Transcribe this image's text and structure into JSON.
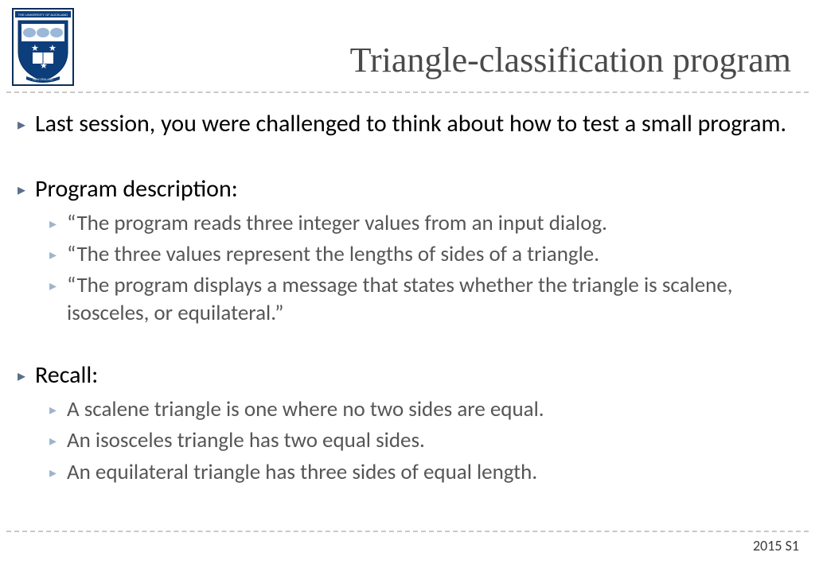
{
  "title": "Triangle-classification program",
  "footer": "2015 S1",
  "colors": {
    "title_color": "#4a4a4a",
    "l1_text": "#000000",
    "l2_text": "#565656",
    "l1_arrow": "#5a6f8a",
    "l2_arrow": "#9eb4cc",
    "divider": "#c8c8c8",
    "shield_blue": "#0d3e7c",
    "shield_border": "#0a2f5e"
  },
  "bullets": [
    {
      "level": 1,
      "text": "Last session, you were challenged to think about how to test a small program."
    },
    {
      "level": 0,
      "text": ""
    },
    {
      "level": 1,
      "text": "Program description:"
    },
    {
      "level": 2,
      "text": "“The program reads three integer values from an input dialog."
    },
    {
      "level": 2,
      "text": "“The three values represent the lengths of sides of a triangle."
    },
    {
      "level": 2,
      "text": "“The program displays a message that states whether the triangle is scalene, isosceles, or equilateral.”"
    },
    {
      "level": 0,
      "text": ""
    },
    {
      "level": 1,
      "text": "Recall:"
    },
    {
      "level": 2,
      "text": "A scalene triangle is one where no two sides are equal."
    },
    {
      "level": 2,
      "text": "An isosceles triangle has two equal sides."
    },
    {
      "level": 2,
      "text": "An equilateral triangle has three sides of equal length."
    }
  ]
}
